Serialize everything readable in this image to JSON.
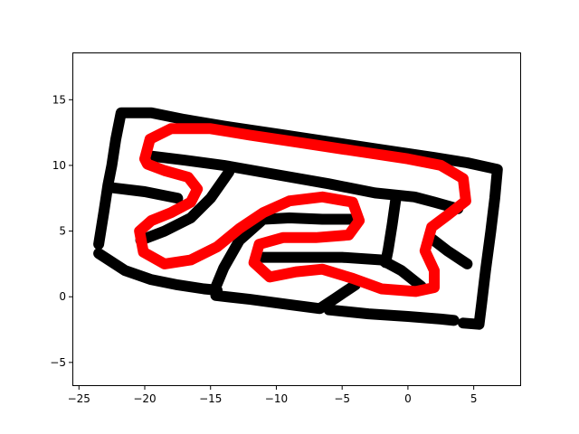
{
  "chart_data": {
    "type": "line",
    "title": "",
    "xlabel": "",
    "ylabel": "",
    "xlim": [
      -25.5,
      8.6
    ],
    "ylim": [
      -6.8,
      18.6
    ],
    "grid": false,
    "legend": "none",
    "xticks": [
      -25,
      -20,
      -15,
      -10,
      -5,
      0,
      5
    ],
    "yticks": [
      -5,
      0,
      5,
      10,
      15
    ],
    "series": [
      {
        "color": "#000000",
        "points": [
          [
            -23.5,
            4.0
          ],
          [
            -23.1,
            6.5
          ],
          [
            -22.8,
            8.5
          ],
          [
            -22.5,
            10.0
          ],
          [
            -22.2,
            12.0
          ],
          [
            -21.8,
            14.0
          ],
          [
            -19.5,
            14.0
          ],
          [
            -17.0,
            13.5
          ],
          [
            -14.0,
            13.0
          ],
          [
            -10.0,
            12.4
          ],
          [
            -6.0,
            11.8
          ],
          [
            -2.0,
            11.2
          ],
          [
            2.0,
            10.6
          ],
          [
            4.5,
            10.2
          ],
          [
            6.8,
            9.7
          ],
          [
            6.6,
            7.5
          ],
          [
            6.3,
            5.0
          ],
          [
            5.9,
            2.0
          ],
          [
            5.6,
            -0.5
          ],
          [
            5.4,
            -2.1
          ],
          [
            4.2,
            -2.0
          ]
        ]
      },
      {
        "color": "#000000",
        "points": [
          [
            -23.5,
            3.3
          ],
          [
            -21.5,
            2.0
          ],
          [
            -19.5,
            1.3
          ],
          [
            -17.5,
            0.9
          ],
          [
            -15.5,
            0.6
          ],
          [
            -14.5,
            0.5
          ]
        ]
      },
      {
        "color": "#000000",
        "points": [
          [
            -14.6,
            0.1
          ],
          [
            -12.0,
            -0.2
          ],
          [
            -9.0,
            -0.6
          ],
          [
            -6.7,
            -0.9
          ],
          [
            -5.5,
            -0.1
          ],
          [
            -4.0,
            0.9
          ]
        ]
      },
      {
        "color": "#000000",
        "points": [
          [
            -6.0,
            -1.0
          ],
          [
            -3.0,
            -1.3
          ],
          [
            0.0,
            -1.5
          ],
          [
            2.5,
            -1.7
          ],
          [
            3.5,
            -1.8
          ]
        ]
      },
      {
        "color": "#000000",
        "points": [
          [
            -22.5,
            8.3
          ],
          [
            -20.0,
            8.0
          ],
          [
            -17.5,
            7.5
          ]
        ]
      },
      {
        "color": "#000000",
        "points": [
          [
            -19.4,
            10.7
          ],
          [
            -17.0,
            10.4
          ],
          [
            -14.0,
            10.0
          ],
          [
            -10.0,
            9.3
          ],
          [
            -6.0,
            8.6
          ],
          [
            -2.5,
            7.9
          ],
          [
            0.5,
            7.6
          ],
          [
            2.0,
            7.2
          ],
          [
            3.8,
            6.7
          ]
        ]
      },
      {
        "color": "#000000",
        "points": [
          [
            -20.3,
            4.3
          ],
          [
            -18.5,
            5.0
          ],
          [
            -16.5,
            6.0
          ],
          [
            -15.0,
            7.5
          ],
          [
            -13.6,
            9.5
          ]
        ]
      },
      {
        "color": "#000000",
        "points": [
          [
            -14.7,
            0.5
          ],
          [
            -14.0,
            2.2
          ],
          [
            -12.8,
            4.3
          ],
          [
            -11.0,
            5.9
          ],
          [
            -9.0,
            6.0
          ],
          [
            -6.5,
            5.9
          ],
          [
            -4.2,
            5.9
          ]
        ]
      },
      {
        "color": "#000000",
        "points": [
          [
            -0.9,
            7.6
          ],
          [
            -1.2,
            5.5
          ],
          [
            -1.5,
            3.6
          ],
          [
            -1.7,
            2.6
          ]
        ]
      },
      {
        "color": "#000000",
        "points": [
          [
            -11.2,
            3.0
          ],
          [
            -8.5,
            3.0
          ],
          [
            -5.0,
            3.0
          ],
          [
            -2.0,
            2.8
          ],
          [
            -0.5,
            2.0
          ],
          [
            1.0,
            0.8
          ]
        ]
      },
      {
        "color": "#000000",
        "points": [
          [
            1.7,
            4.5
          ],
          [
            3.0,
            3.5
          ],
          [
            4.5,
            2.5
          ]
        ]
      },
      {
        "color": "#ff0000",
        "points": [
          [
            -20.0,
            10.5
          ],
          [
            -19.6,
            12.0
          ],
          [
            -18.0,
            12.8
          ],
          [
            -15.0,
            12.8
          ],
          [
            -12.0,
            12.3
          ],
          [
            -8.0,
            11.7
          ],
          [
            -4.0,
            11.1
          ],
          [
            0.0,
            10.5
          ],
          [
            2.5,
            10.0
          ],
          [
            4.2,
            9.0
          ],
          [
            4.4,
            7.3
          ],
          [
            3.0,
            6.2
          ],
          [
            1.8,
            5.3
          ],
          [
            1.3,
            3.5
          ],
          [
            2.0,
            2.0
          ],
          [
            2.0,
            0.7
          ],
          [
            0.6,
            0.4
          ],
          [
            -2.0,
            0.6
          ],
          [
            -4.2,
            1.4
          ],
          [
            -6.5,
            2.1
          ],
          [
            -8.5,
            1.9
          ],
          [
            -10.5,
            1.5
          ],
          [
            -11.7,
            2.6
          ],
          [
            -11.3,
            4.0
          ],
          [
            -9.5,
            4.5
          ],
          [
            -7.0,
            4.5
          ],
          [
            -4.5,
            4.7
          ],
          [
            -3.7,
            5.8
          ],
          [
            -4.2,
            7.2
          ],
          [
            -6.5,
            7.6
          ],
          [
            -9.0,
            7.3
          ],
          [
            -11.0,
            6.4
          ],
          [
            -12.8,
            5.2
          ],
          [
            -14.5,
            3.8
          ],
          [
            -16.5,
            2.8
          ],
          [
            -18.5,
            2.5
          ],
          [
            -20.1,
            3.4
          ],
          [
            -20.4,
            5.0
          ],
          [
            -19.5,
            5.8
          ],
          [
            -18.0,
            6.4
          ],
          [
            -16.5,
            7.2
          ],
          [
            -16.0,
            8.2
          ],
          [
            -16.7,
            9.1
          ],
          [
            -18.5,
            9.6
          ],
          [
            -19.8,
            10.1
          ],
          [
            -20.0,
            10.5
          ]
        ]
      }
    ]
  }
}
